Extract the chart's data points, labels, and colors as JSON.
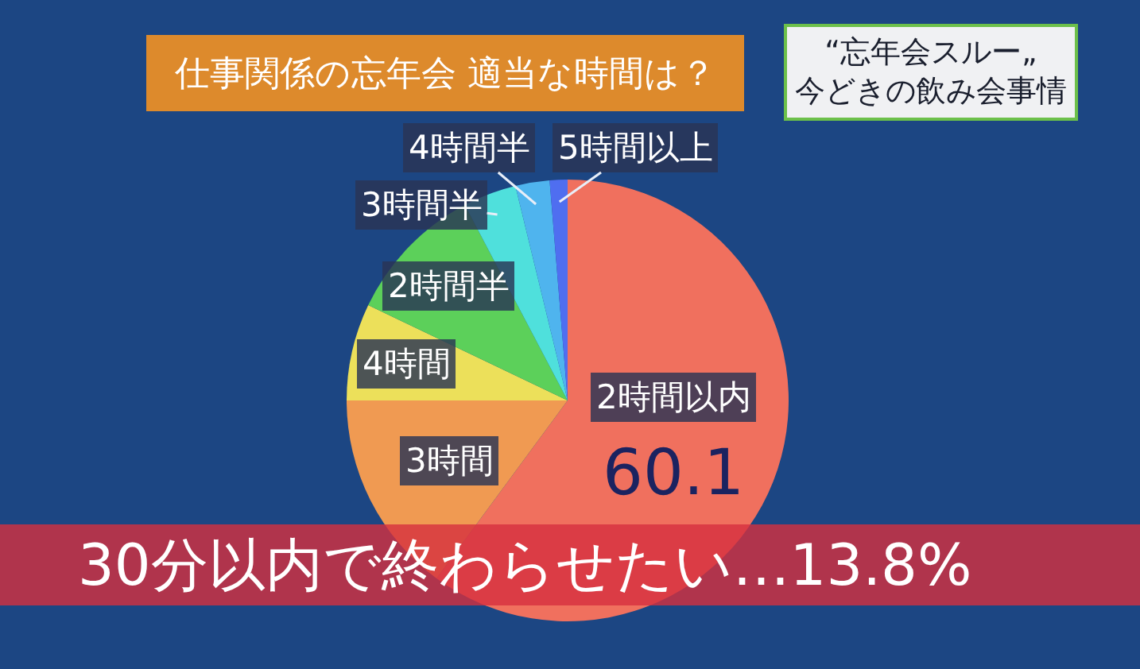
{
  "chart_data": {
    "type": "pie",
    "title": "仕事関係の忘年会 適当な時間は？",
    "subtitle": "“忘年会スルー„\n今どきの飲み会事情",
    "categories": [
      "2時間以内",
      "3時間",
      "4時間",
      "2時間半",
      "3時間半",
      "4時間半",
      "5時間以上"
    ],
    "values": [
      60.1,
      14.9,
      7.1,
      10.2,
      3.9,
      2.5,
      1.3
    ],
    "colors": [
      "#f0705e",
      "#f09a52",
      "#ece05a",
      "#5cd05a",
      "#4fe0dc",
      "#4fb4ee",
      "#4f6ef0"
    ],
    "value_labels": [
      "60.1",
      null,
      null,
      null,
      null,
      null,
      null
    ],
    "annotations": [
      "30分以内で終わらせたい…13.8%"
    ]
  }
}
